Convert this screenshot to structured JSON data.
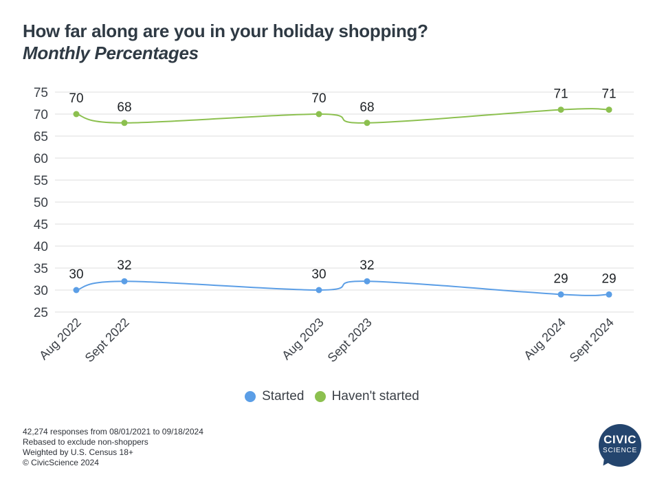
{
  "header": {
    "title": "How far along are you in your holiday shopping?",
    "subtitle": "Monthly Percentages"
  },
  "chart_data": {
    "type": "line",
    "title": "How far along are you in your holiday shopping?",
    "subtitle": "Monthly Percentages",
    "categories": [
      "Aug 2022",
      "Sept 2022",
      "Aug 2023",
      "Sept 2023",
      "Aug 2024",
      "Sept 2024"
    ],
    "series": [
      {
        "name": "Started",
        "color": "#5b9ee6",
        "values": [
          30,
          32,
          30,
          32,
          29,
          29
        ]
      },
      {
        "name": "Haven't started",
        "color": "#8cc04f",
        "values": [
          70,
          68,
          70,
          68,
          71,
          71
        ]
      }
    ],
    "ylim": [
      25,
      75
    ],
    "yticks": [
      25,
      30,
      35,
      40,
      45,
      50,
      55,
      60,
      65,
      70,
      75
    ],
    "xlabel": "",
    "ylabel": "",
    "grid": true,
    "legend": "bottom",
    "data_labels": true,
    "smooth": true
  },
  "legend": {
    "items": [
      {
        "label": "Started",
        "color": "#5b9ee6"
      },
      {
        "label": "Haven't started",
        "color": "#8cc04f"
      }
    ]
  },
  "footnotes": [
    "42,274 responses from 08/01/2021 to 09/18/2024",
    "Rebased to exclude non-shoppers",
    "Weighted by U.S. Census 18+",
    "© CivicScience 2024"
  ],
  "badge": {
    "line1": "CIVIC",
    "line2": "SCIENCE"
  }
}
